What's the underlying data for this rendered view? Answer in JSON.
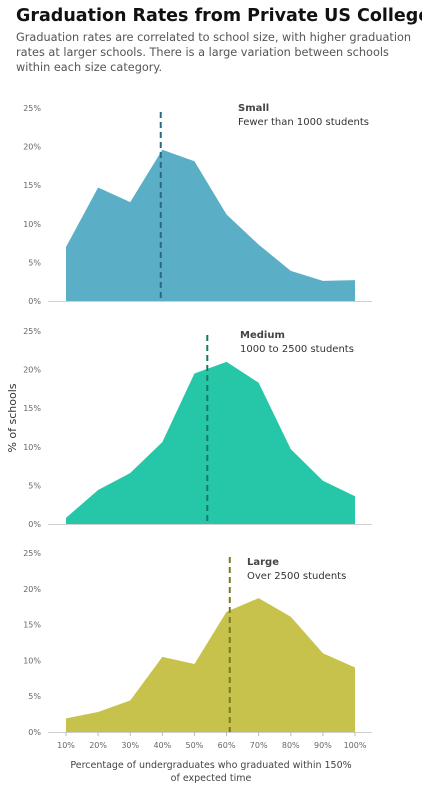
{
  "title": "Graduation Rates from Private US Colleges",
  "subtitle": "Graduation rates are correlated to school size, with higher graduation rates at larger schools. There is a large variation between schools within each size category.",
  "chart_data": {
    "type": "area",
    "ylabel": "% of schools",
    "xlabel_lines": [
      "Percentage of undergraduates who graduated within 150%",
      "of expected time"
    ],
    "x_ticks": [
      "10%",
      "20%",
      "30%",
      "40%",
      "50%",
      "60%",
      "70%",
      "80%",
      "90%",
      "100%"
    ],
    "y_ticks": [
      "0%",
      "5%",
      "10%",
      "15%",
      "20%",
      "25%"
    ],
    "ylim": [
      0,
      25
    ],
    "xlim": [
      10,
      100
    ],
    "grid": false,
    "series": [
      {
        "name": "Small",
        "annotation": "Fewer than 1000 students",
        "color": "#5aafc6",
        "median_color": "#2b6a80",
        "median": 39.5,
        "x": [
          10,
          20,
          30,
          40,
          50,
          60,
          70,
          80,
          90,
          100
        ],
        "y": [
          7.0,
          14.7,
          12.8,
          19.6,
          18.1,
          11.2,
          7.3,
          3.9,
          2.6,
          2.7
        ]
      },
      {
        "name": "Medium",
        "annotation": "1000 to 2500 students",
        "color": "#26c6a8",
        "median_color": "#167a63",
        "median": 54,
        "x": [
          10,
          20,
          30,
          40,
          50,
          60,
          70,
          80,
          90,
          100
        ],
        "y": [
          0.8,
          4.4,
          6.6,
          10.6,
          19.5,
          21.0,
          18.3,
          9.7,
          5.6,
          3.6
        ]
      },
      {
        "name": "Large",
        "annotation": "Over 2500 students",
        "color": "#c6c24c",
        "median_color": "#7b7a22",
        "median": 61,
        "x": [
          10,
          20,
          30,
          40,
          50,
          60,
          70,
          80,
          90,
          100
        ],
        "y": [
          1.9,
          2.8,
          4.4,
          10.5,
          9.5,
          16.8,
          18.7,
          16.1,
          11.0,
          9.0
        ]
      }
    ]
  }
}
